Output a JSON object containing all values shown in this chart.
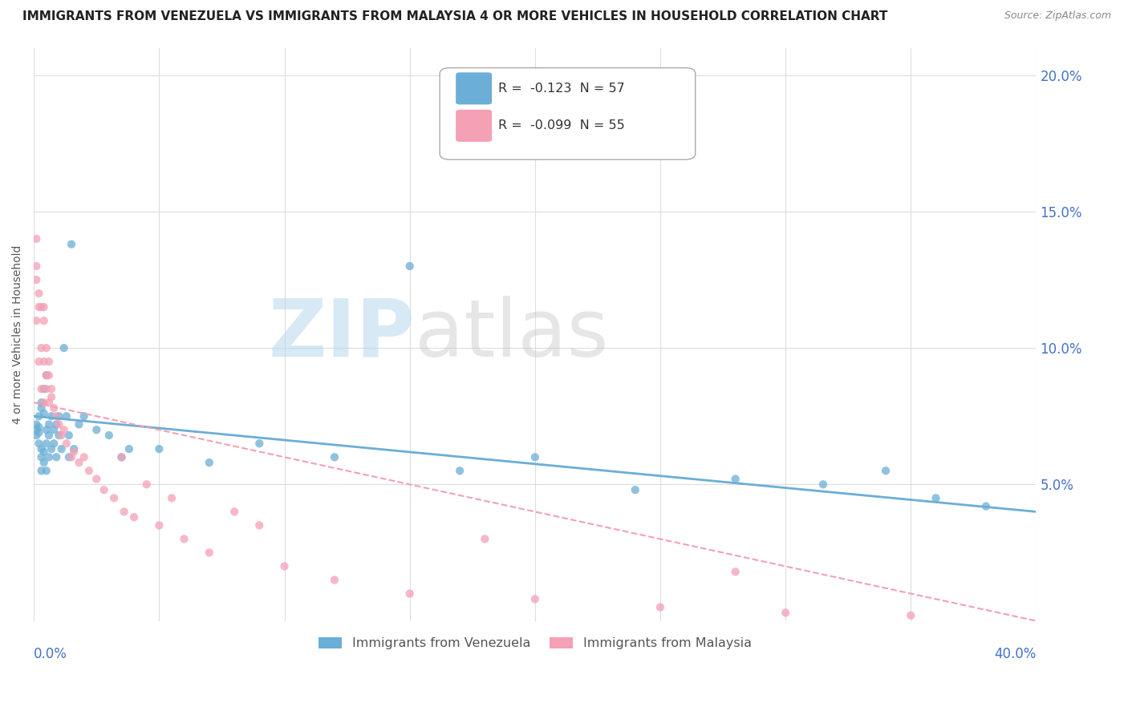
{
  "title": "IMMIGRANTS FROM VENEZUELA VS IMMIGRANTS FROM MALAYSIA 4 OR MORE VEHICLES IN HOUSEHOLD CORRELATION CHART",
  "source": "Source: ZipAtlas.com",
  "ylabel": "4 or more Vehicles in Household",
  "legend1_label": "Immigrants from Venezuela",
  "legend2_label": "Immigrants from Malaysia",
  "r1": "-0.123",
  "n1": "57",
  "r2": "-0.099",
  "n2": "55",
  "color_venezuela": "#6baed6",
  "color_malaysia": "#f4a0b5",
  "watermark_zip": "ZIP",
  "watermark_atlas": "atlas",
  "xlim": [
    0.0,
    0.4
  ],
  "ylim": [
    0.0,
    0.21
  ],
  "background_color": "#ffffff"
}
